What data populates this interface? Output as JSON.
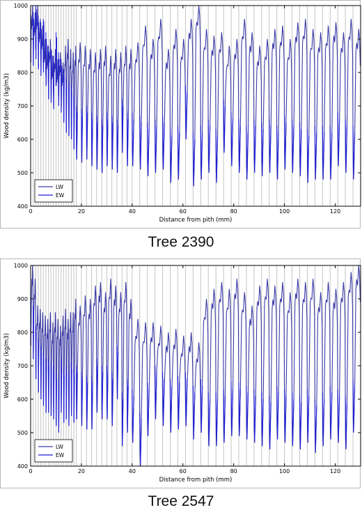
{
  "chart_data": [
    {
      "type": "line",
      "caption": "Tree 2390",
      "xlabel": "Distance from pith (mm)",
      "ylabel": "Wood density (kg/m3)",
      "xlim": [
        0,
        130
      ],
      "ylim": [
        400,
        1000
      ],
      "xticks": [
        "0",
        "20",
        "40",
        "60",
        "80",
        "100",
        "120"
      ],
      "yticks": [
        "400",
        "500",
        "600",
        "700",
        "800",
        "900",
        "1000"
      ],
      "grid": "vertical ring boundaries",
      "legend": "bottom-left",
      "ring_boundaries": [
        1,
        2,
        3,
        4,
        5,
        6,
        7,
        8,
        9,
        10,
        11,
        12,
        13,
        14,
        15,
        16,
        17,
        18,
        20,
        22,
        24,
        26,
        28,
        30,
        32,
        34,
        36,
        38,
        40,
        43,
        46,
        49,
        52,
        55,
        58,
        61,
        64,
        67,
        70,
        73,
        76,
        79,
        82,
        85,
        88,
        91,
        94,
        97,
        100,
        103,
        106,
        109,
        112,
        115,
        118,
        121,
        124,
        127,
        130
      ],
      "series": [
        {
          "name": "LW",
          "color": "#3a3aa8"
        },
        {
          "name": "EW",
          "color": "#1f1fd6"
        }
      ],
      "profile": {
        "peaks": [
          1000,
          980,
          1000,
          960,
          940,
          900,
          880,
          900,
          850,
          870,
          840,
          860,
          830,
          880,
          900,
          870,
          860,
          880,
          890,
          880,
          870,
          860,
          870,
          880,
          850,
          870,
          860,
          880,
          870,
          890,
          940,
          900,
          960,
          870,
          930,
          900,
          960,
          1000,
          930,
          910,
          920,
          880,
          900,
          960,
          920,
          880,
          900,
          930,
          940,
          900,
          950,
          960,
          930,
          920,
          940,
          950,
          920,
          960,
          930
        ],
        "troughs": [
          830,
          820,
          840,
          810,
          790,
          800,
          760,
          720,
          710,
          690,
          760,
          700,
          680,
          650,
          620,
          610,
          600,
          570,
          540,
          530,
          540,
          520,
          510,
          500,
          520,
          510,
          500,
          560,
          520,
          520,
          510,
          490,
          500,
          510,
          470,
          480,
          600,
          460,
          480,
          500,
          470,
          560,
          520,
          500,
          480,
          500,
          490,
          500,
          480,
          510,
          500,
          490,
          470,
          480,
          480,
          480,
          520,
          500,
          480
        ]
      }
    },
    {
      "type": "line",
      "caption": "Tree 2547",
      "xlabel": "Distance from pith (mm)",
      "ylabel": "Wood density (kg/m3)",
      "xlim": [
        0,
        130
      ],
      "ylim": [
        400,
        1000
      ],
      "xticks": [
        "0",
        "20",
        "40",
        "60",
        "80",
        "100",
        "120"
      ],
      "yticks": [
        "400",
        "500",
        "600",
        "700",
        "800",
        "900",
        "1000"
      ],
      "grid": "vertical ring boundaries",
      "legend": "bottom-left",
      "ring_boundaries": [
        1,
        2,
        3,
        4,
        5,
        6,
        7,
        8,
        9,
        10,
        11,
        12,
        13,
        14,
        15,
        16,
        17,
        18,
        20,
        22,
        24,
        26,
        28,
        30,
        32,
        34,
        36,
        38,
        40,
        43,
        46,
        49,
        52,
        55,
        58,
        61,
        64,
        67,
        70,
        73,
        76,
        79,
        82,
        85,
        88,
        91,
        94,
        97,
        100,
        103,
        106,
        109,
        112,
        115,
        118,
        121,
        124,
        127,
        130
      ],
      "series": [
        {
          "name": "LW",
          "color": "#3a3aa8"
        },
        {
          "name": "EW",
          "color": "#1f1fd6"
        }
      ],
      "profile": {
        "peaks": [
          1000,
          960,
          880,
          870,
          860,
          850,
          840,
          860,
          830,
          860,
          840,
          820,
          850,
          870,
          840,
          860,
          860,
          900,
          880,
          910,
          900,
          940,
          950,
          920,
          960,
          940,
          920,
          950,
          900,
          840,
          830,
          830,
          820,
          800,
          810,
          790,
          800,
          770,
          900,
          930,
          950,
          930,
          960,
          920,
          880,
          940,
          960,
          940,
          950,
          920,
          960,
          950,
          960,
          920,
          950,
          930,
          950,
          980,
          1000
        ],
        "troughs": [
          760,
          720,
          660,
          620,
          600,
          580,
          560,
          560,
          550,
          540,
          520,
          500,
          560,
          530,
          540,
          520,
          550,
          530,
          540,
          520,
          510,
          510,
          560,
          540,
          540,
          520,
          600,
          460,
          500,
          470,
          400,
          490,
          540,
          520,
          500,
          510,
          520,
          480,
          500,
          460,
          460,
          470,
          490,
          490,
          480,
          470,
          460,
          450,
          480,
          470,
          460,
          450,
          470,
          440,
          460,
          480,
          470,
          450,
          500
        ]
      }
    }
  ]
}
